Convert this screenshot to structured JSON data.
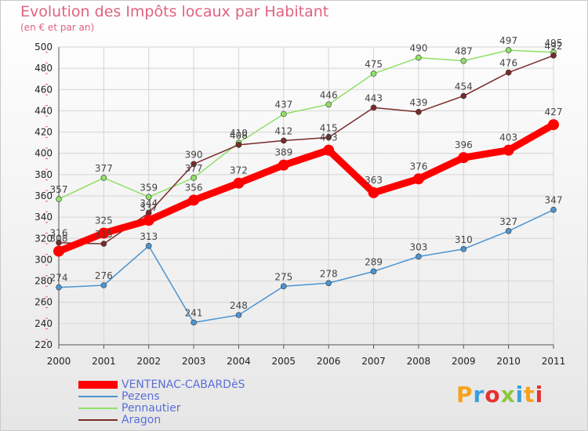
{
  "header": {
    "title": "Evolution des Impôts locaux par Habitant",
    "subtitle": "(en € et par an)"
  },
  "logo": {
    "letters": [
      "P",
      "r",
      "o",
      "x",
      "i",
      "t",
      "i"
    ]
  },
  "chart_data": {
    "type": "line",
    "x": [
      2000,
      2001,
      2002,
      2003,
      2004,
      2005,
      2006,
      2007,
      2008,
      2009,
      2010,
      2011
    ],
    "ylim": [
      220,
      500
    ],
    "yticks": [
      220,
      240,
      260,
      280,
      300,
      320,
      340,
      360,
      380,
      400,
      420,
      440,
      460,
      480,
      500
    ],
    "grid": true,
    "legend_placement": "bottom-left",
    "series": [
      {
        "name": "VENTENAC-CABARDèS",
        "color": "#ff0000",
        "values": [
          308,
          325,
          337,
          356,
          372,
          389,
          403,
          363,
          376,
          396,
          403,
          427
        ],
        "data_labels": [
          "308",
          "325",
          "337",
          "356",
          "372",
          "389",
          "403",
          "363",
          "376",
          "396",
          "403",
          "427"
        ]
      },
      {
        "name": "Pezens",
        "color": "#4d94d0",
        "values": [
          274,
          276,
          313,
          241,
          248,
          275,
          278,
          289,
          303,
          310,
          327,
          347
        ],
        "data_labels": [
          "274",
          "276",
          "313",
          "241",
          "248",
          "275",
          "278",
          "289",
          "303",
          "310",
          "327",
          "347"
        ]
      },
      {
        "name": "Pennautier",
        "color": "#8fe067",
        "values": [
          357,
          377,
          359,
          377,
          410,
          437,
          446,
          475,
          490,
          487,
          497,
          495
        ],
        "data_labels": [
          "357",
          "377",
          "359",
          "377",
          "410",
          "437",
          "446",
          "475",
          "490",
          "487",
          "497",
          "495"
        ]
      },
      {
        "name": "Aragon",
        "color": "#7a2a2a",
        "values": [
          316,
          315,
          344,
          390,
          408,
          412,
          415,
          443,
          439,
          454,
          476,
          492
        ],
        "data_labels": [
          "316",
          "315",
          "344",
          "390",
          "408",
          "412",
          "415",
          "443",
          "439",
          "454",
          "476",
          "492"
        ]
      }
    ]
  }
}
